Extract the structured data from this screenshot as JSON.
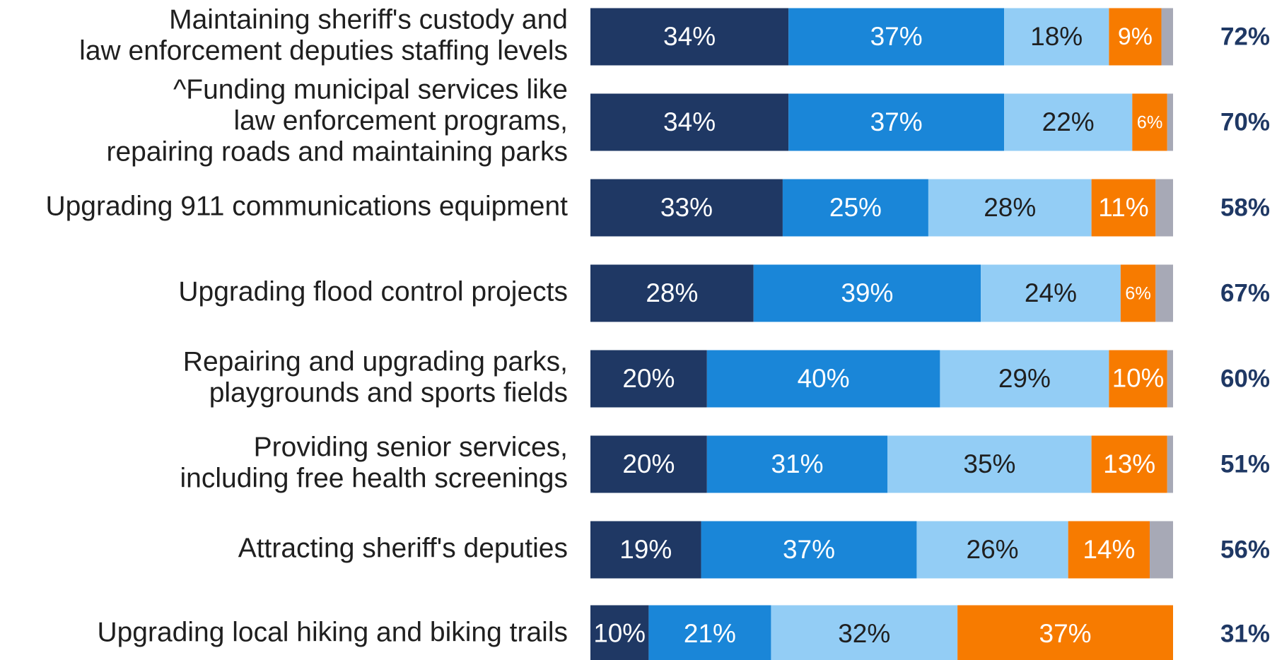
{
  "chart_data": {
    "type": "stacked_barh",
    "categories": [
      [
        "Maintaining sheriff's custody and",
        "law enforcement deputies staffing levels"
      ],
      [
        "^Funding municipal services like",
        "law enforcement programs,",
        "repairing roads and maintaining parks"
      ],
      [
        "Upgrading 911 communications equipment"
      ],
      [
        "Upgrading flood control projects"
      ],
      [
        "Repairing and upgrading parks,",
        "playgrounds and sports fields"
      ],
      [
        "Providing senior services,",
        "including free health screenings"
      ],
      [
        "Attracting sheriff's deputies"
      ],
      [
        "Upgrading local hiking and biking trails"
      ]
    ],
    "xlim": [
      0,
      100
    ],
    "series": [
      {
        "color": "#1f3864",
        "label_color": "#ffffff",
        "values": [
          34,
          34,
          33,
          28,
          20,
          20,
          19,
          10
        ],
        "value_labels": [
          "34%",
          "34%",
          "33%",
          "28%",
          "20%",
          "20%",
          "19%",
          "10%"
        ]
      },
      {
        "color": "#1a86d8",
        "label_color": "#ffffff",
        "values": [
          37,
          37,
          25,
          39,
          40,
          31,
          37,
          21
        ],
        "value_labels": [
          "37%",
          "37%",
          "25%",
          "39%",
          "40%",
          "31%",
          "37%",
          "21%"
        ]
      },
      {
        "color": "#93cdf5",
        "label_color": "#1f1f1f",
        "values": [
          18,
          22,
          28,
          24,
          29,
          35,
          26,
          32
        ],
        "value_labels": [
          "18%",
          "22%",
          "28%",
          "24%",
          "29%",
          "35%",
          "26%",
          "32%"
        ]
      },
      {
        "color": "#f77b00",
        "label_color": "#ffffff",
        "values": [
          9,
          6,
          11,
          6,
          10,
          13,
          14,
          37
        ],
        "value_labels": [
          "9%",
          "6%",
          "11%",
          "6%",
          "10%",
          "13%",
          "14%",
          "37%"
        ]
      },
      {
        "color": "#a7a9b6",
        "values": [
          2,
          1,
          3,
          3,
          1,
          1,
          4,
          0
        ]
      }
    ],
    "totals": {
      "values": [
        72,
        70,
        58,
        67,
        60,
        51,
        56,
        31
      ],
      "value_labels": [
        "72%",
        "70%",
        "58%",
        "67%",
        "60%",
        "51%",
        "56%",
        "31%"
      ]
    }
  }
}
